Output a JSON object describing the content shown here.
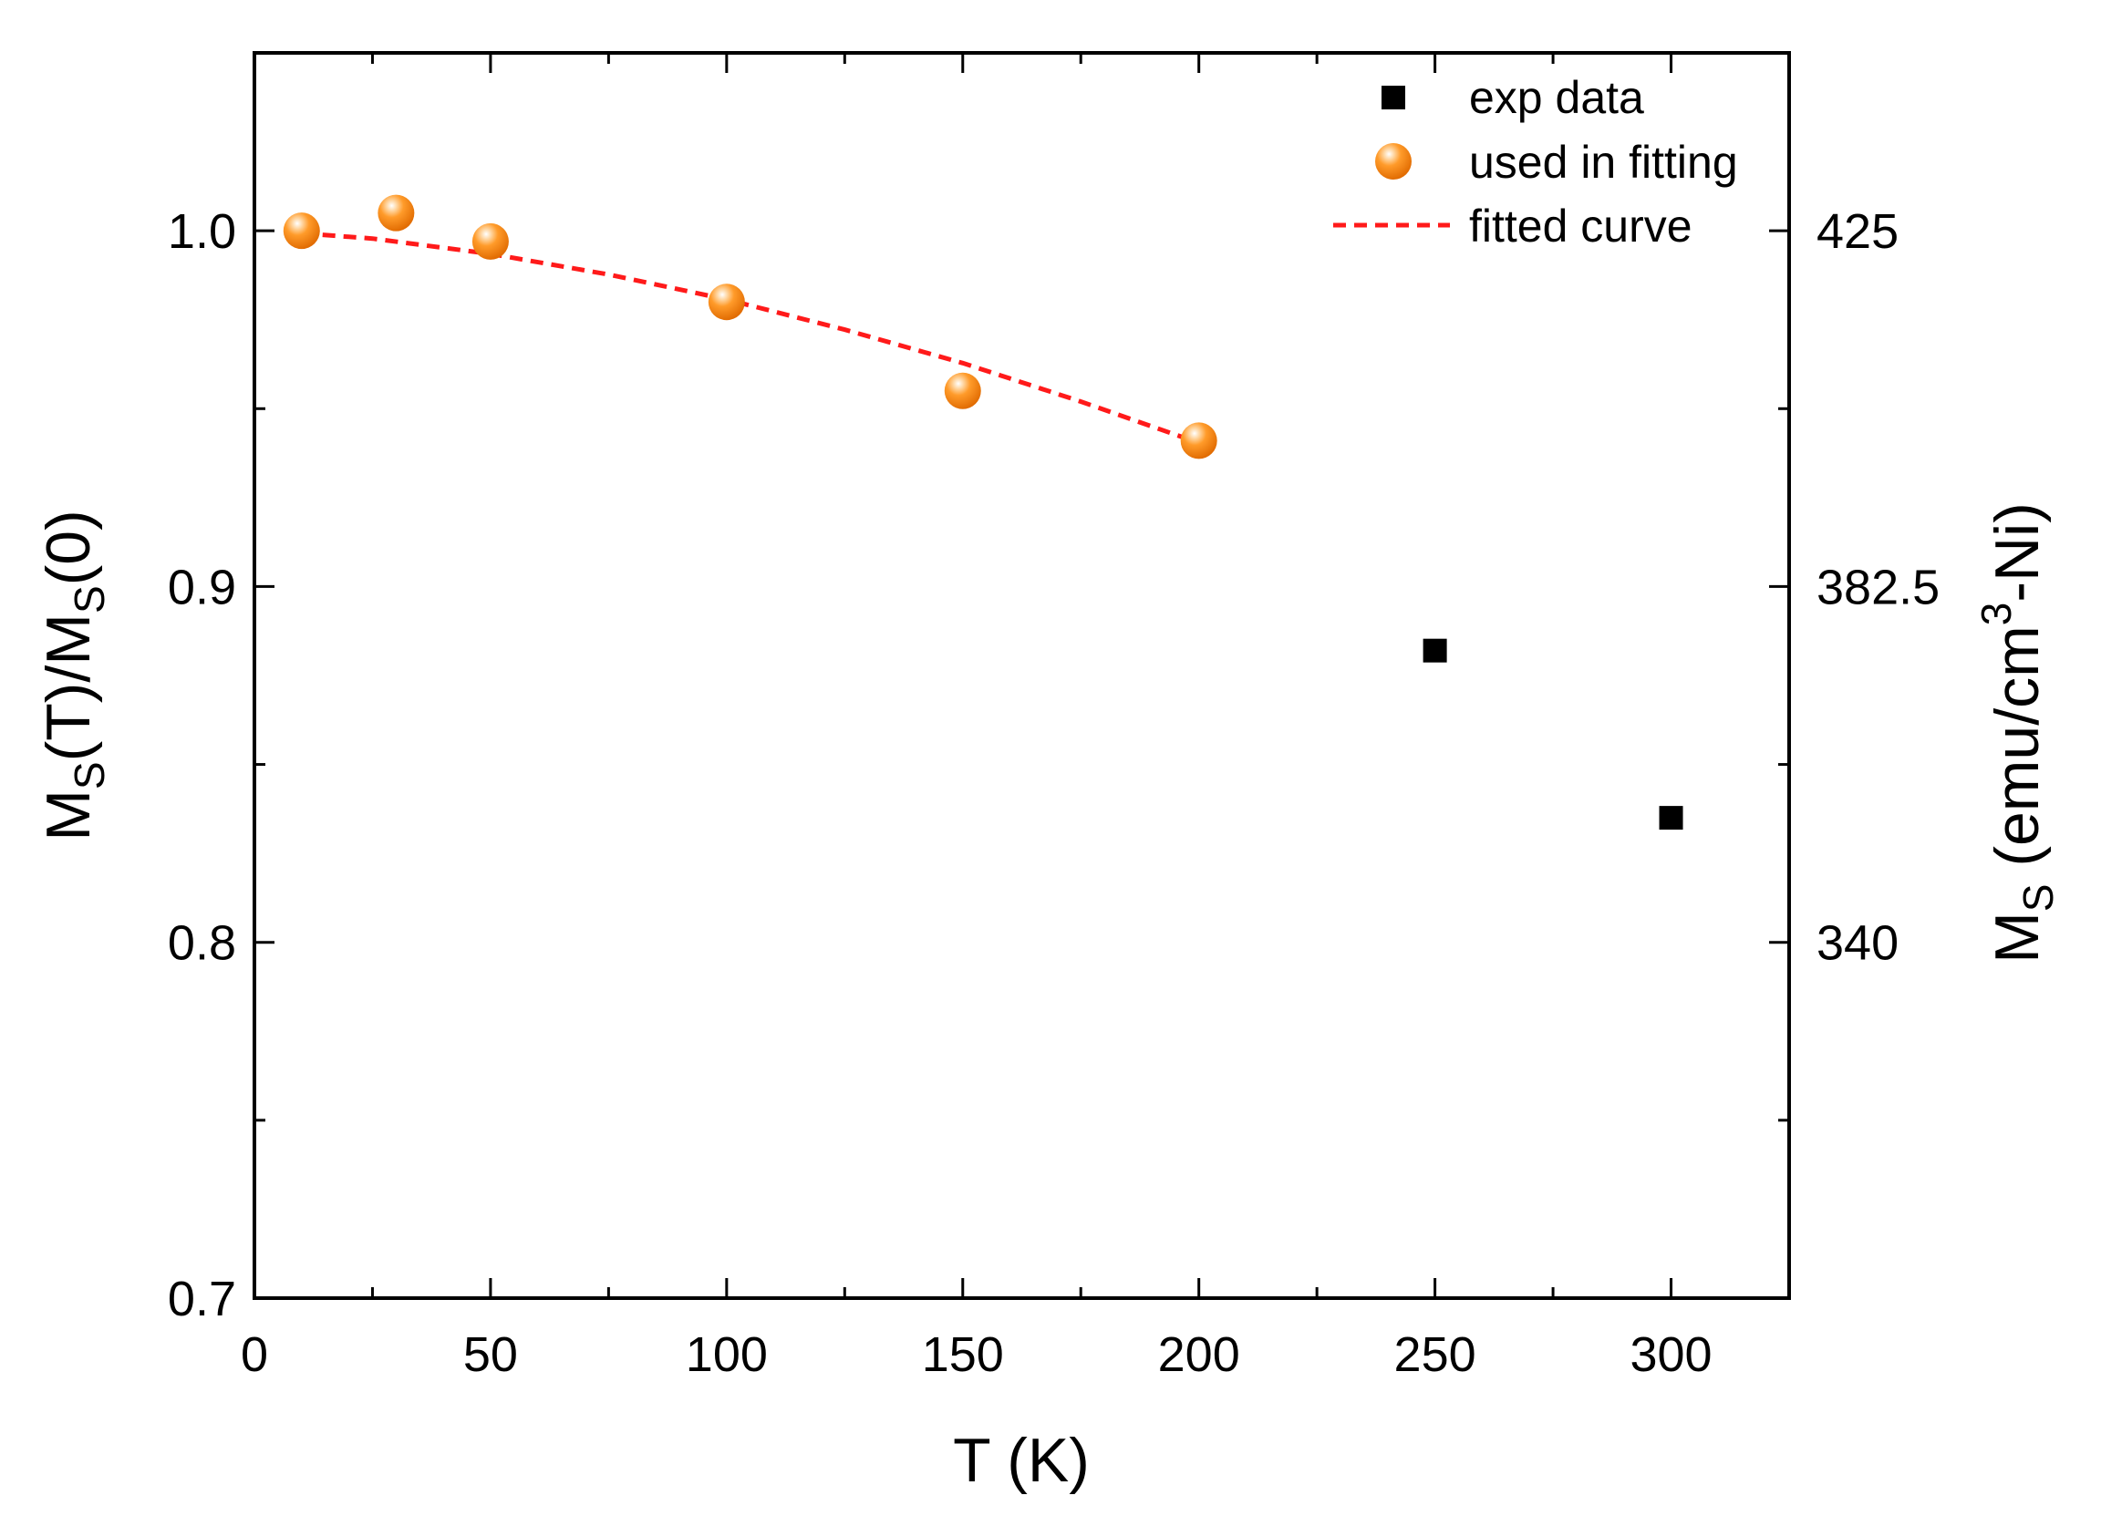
{
  "chart_data": {
    "type": "scatter",
    "xlabel": "T (K)",
    "ylabel": {
      "main": "M",
      "sub1": "S",
      "mid": "(T)/M",
      "sub2": "S",
      "end": "(0)"
    },
    "y2label": {
      "main": "M",
      "sub": "S",
      "rest1": " (emu/cm",
      "sup": "3",
      "rest2": "-Ni)"
    },
    "xlim": [
      0,
      325
    ],
    "ylim": [
      0.7,
      1.05
    ],
    "xticks": [
      0,
      50,
      100,
      150,
      200,
      250,
      300
    ],
    "xtick_labels": [
      "0",
      "50",
      "100",
      "150",
      "200",
      "250",
      "300"
    ],
    "yticks": [
      0.7,
      0.8,
      0.9,
      1.0
    ],
    "ytick_labels": [
      "0.7",
      "0.8",
      "0.9",
      "1.0"
    ],
    "y2ticks": [
      0.8,
      0.9,
      1.0
    ],
    "y2tick_labels": [
      "340",
      "382.5",
      "425"
    ],
    "series": [
      {
        "name": "exp data",
        "marker": "square",
        "color": "#000000",
        "x": [
          250,
          300
        ],
        "y": [
          0.882,
          0.835
        ]
      },
      {
        "name": "used in fitting",
        "marker": "sphere",
        "color": "#ff8c1a",
        "x": [
          10,
          30,
          50,
          100,
          150,
          200
        ],
        "y": [
          1.0,
          1.005,
          0.997,
          0.98,
          0.955,
          0.941
        ]
      },
      {
        "name": "fitted curve",
        "style": "dashed",
        "color": "#ff1a1a",
        "x": [
          10,
          25,
          50,
          75,
          100,
          125,
          150,
          175,
          200
        ],
        "y": [
          0.9993,
          0.9978,
          0.9935,
          0.9877,
          0.9807,
          0.9722,
          0.9628,
          0.952,
          0.9404
        ]
      }
    ],
    "legend_position": "top-right",
    "legend": [
      "exp data",
      "used in fitting",
      "fitted curve"
    ]
  }
}
